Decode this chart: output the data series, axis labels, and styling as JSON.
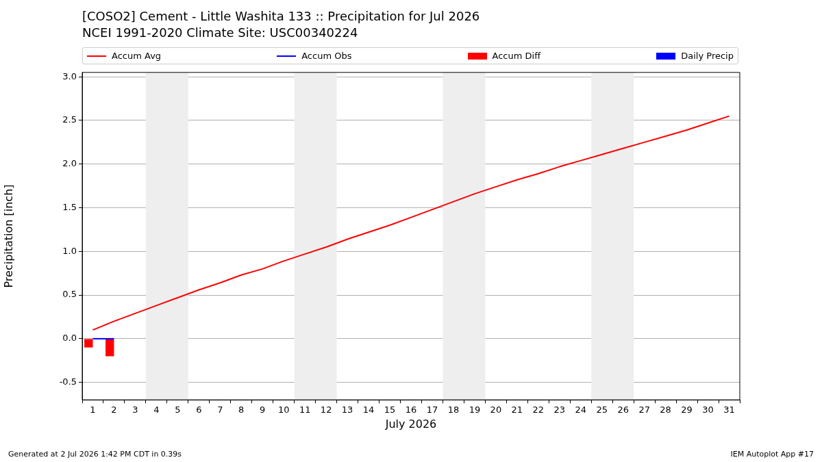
{
  "chart_data": {
    "type": "line",
    "title": "[COSO2] Cement - Little Washita 133 :: Precipitation for Jul 2026",
    "subtitle": "NCEI 1991-2020 Climate Site: USC00340224",
    "xlabel": "July 2026",
    "ylabel": "Precipitation [inch]",
    "xlim": [
      0.5,
      31.5
    ],
    "xticks": [
      1,
      2,
      3,
      4,
      5,
      6,
      7,
      8,
      9,
      10,
      11,
      12,
      13,
      14,
      15,
      16,
      17,
      18,
      19,
      20,
      21,
      22,
      23,
      24,
      25,
      26,
      27,
      28,
      29,
      30,
      31
    ],
    "ylim": [
      -0.7,
      3.05
    ],
    "yticks": [
      -0.5,
      {
        "value": 0,
        "label": "0.0"
      },
      0.5,
      {
        "value": 1,
        "label": "1.0"
      },
      1.5,
      {
        "value": 2,
        "label": "2.0"
      },
      2.5,
      {
        "value": 3,
        "label": "3.0"
      }
    ],
    "series": [
      {
        "name": "Accum Avg",
        "color": "#ff0000",
        "x": [
          1,
          2,
          3,
          4,
          5,
          6,
          7,
          8,
          9,
          10,
          11,
          12,
          13,
          14,
          15,
          16,
          17,
          18,
          19,
          20,
          21,
          22,
          23,
          24,
          25,
          26,
          27,
          28,
          29,
          30,
          31
        ],
        "values": [
          0.1,
          0.2,
          0.29,
          0.38,
          0.47,
          0.56,
          0.64,
          0.73,
          0.8,
          0.89,
          0.97,
          1.05,
          1.14,
          1.22,
          1.3,
          1.39,
          1.48,
          1.57,
          1.66,
          1.74,
          1.82,
          1.89,
          1.97,
          2.04,
          2.11,
          2.18,
          2.25,
          2.32,
          2.39,
          2.47,
          2.55
        ]
      },
      {
        "name": "Accum Obs",
        "color": "#0000ff",
        "x": [
          1,
          2
        ],
        "values": [
          0,
          0
        ]
      },
      {
        "name": "Accum Diff",
        "type": "bar",
        "color": "#ff0000",
        "x": [
          1,
          2
        ],
        "values": [
          -0.1,
          -0.2
        ]
      },
      {
        "name": "Daily Precip",
        "type": "bar",
        "color": "#0000ff",
        "x": [
          1,
          2
        ],
        "values": [
          0,
          0
        ]
      }
    ],
    "bands": [
      {
        "axis": "x",
        "from": 3.5,
        "to": 5.5,
        "color": "#eeeeee"
      },
      {
        "axis": "x",
        "from": 10.5,
        "to": 12.5,
        "color": "#eeeeee"
      },
      {
        "axis": "x",
        "from": 17.5,
        "to": 19.5,
        "color": "#eeeeee"
      },
      {
        "axis": "x",
        "from": 24.5,
        "to": 26.5,
        "color": "#eeeeee"
      }
    ],
    "annotations": [
      "Generated at 2 Jul 2026 1:42 PM CDT in 0.39s",
      "IEM Autoplot App #17"
    ],
    "grid": "y",
    "legend": "top",
    "marker": "none",
    "line_style": "solid"
  }
}
